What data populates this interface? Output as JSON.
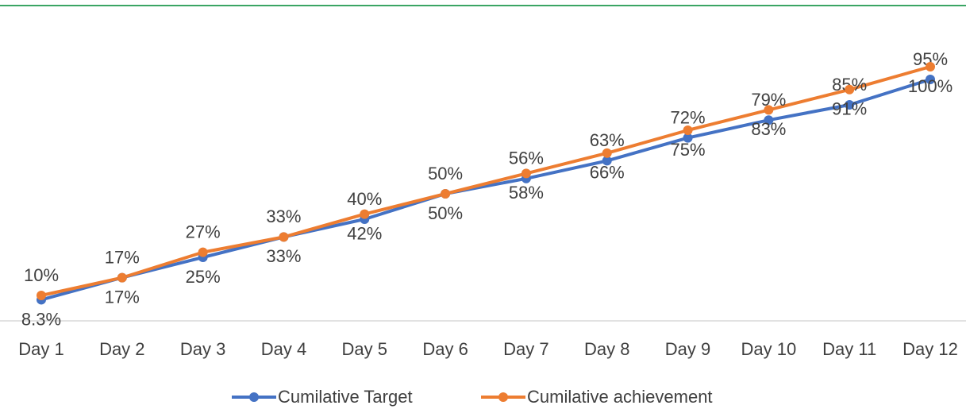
{
  "chart_data": {
    "type": "line",
    "categories": [
      "Day 1",
      "Day 2",
      "Day 3",
      "Day 4",
      "Day 5",
      "Day 6",
      "Day 7",
      "Day 8",
      "Day 9",
      "Day 10",
      "Day 11",
      "Day 12"
    ],
    "series": [
      {
        "name": "Cumilative Target",
        "color": "#4472c4",
        "values": [
          8.3,
          17,
          25,
          33,
          40,
          50,
          56,
          63,
          72,
          79,
          85,
          95
        ],
        "value_labels": [
          "8.3%",
          "17%",
          "25%",
          "33%",
          "40%",
          "50%",
          "56%",
          "63%",
          "72%",
          "79%",
          "85%",
          "95%"
        ]
      },
      {
        "name": "Cumilative achievement",
        "color": "#ed7d31",
        "values": [
          10,
          17,
          27,
          33,
          42,
          50,
          58,
          66,
          75,
          83,
          91,
          100
        ],
        "value_labels": [
          "10%",
          "17%",
          "27%",
          "33%",
          "42%",
          "50%",
          "58%",
          "66%",
          "75%",
          "83%",
          "91%",
          "100%"
        ]
      }
    ]
  }
}
